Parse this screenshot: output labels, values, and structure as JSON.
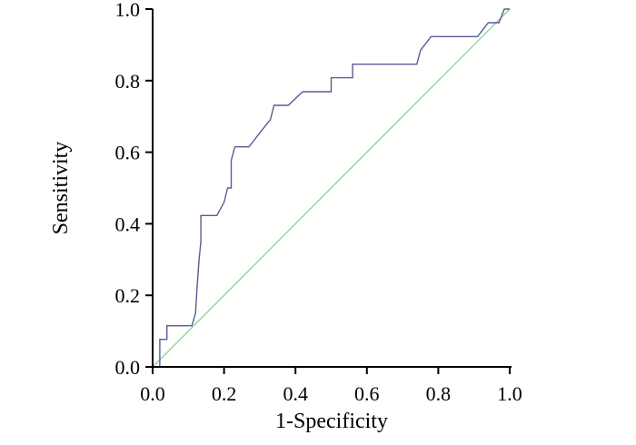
{
  "chart_data": {
    "type": "line",
    "title": "",
    "xlabel": "1-Specificity",
    "ylabel": "Sensitivity",
    "xlim": [
      0,
      1
    ],
    "ylim": [
      0,
      1
    ],
    "xticks": [
      "0.0",
      "0.2",
      "0.4",
      "0.6",
      "0.8",
      "1.0"
    ],
    "yticks": [
      "0.0",
      "0.2",
      "0.4",
      "0.6",
      "0.8",
      "1.0"
    ],
    "grid": false,
    "legend": "none",
    "series": [
      {
        "color": "#5a5a9a",
        "x": [
          0.0,
          0.02,
          0.02,
          0.04,
          0.04,
          0.11,
          0.12,
          0.125,
          0.13,
          0.135,
          0.135,
          0.18,
          0.2,
          0.21,
          0.22,
          0.22,
          0.23,
          0.24,
          0.27,
          0.3,
          0.33,
          0.34,
          0.38,
          0.42,
          0.5,
          0.5,
          0.56,
          0.56,
          0.74,
          0.75,
          0.78,
          0.91,
          0.94,
          0.96,
          0.97,
          0.985,
          1.0
        ],
        "y": [
          0.0,
          0.0,
          0.077,
          0.077,
          0.115,
          0.115,
          0.15,
          0.23,
          0.3,
          0.35,
          0.423,
          0.423,
          0.46,
          0.5,
          0.5,
          0.577,
          0.615,
          0.615,
          0.615,
          0.654,
          0.692,
          0.731,
          0.731,
          0.769,
          0.769,
          0.808,
          0.808,
          0.846,
          0.846,
          0.885,
          0.923,
          0.923,
          0.962,
          0.962,
          0.962,
          1.0,
          1.0
        ]
      },
      {
        "color": "#8fd08f",
        "x": [
          0,
          1
        ],
        "y": [
          0,
          1
        ]
      }
    ]
  }
}
